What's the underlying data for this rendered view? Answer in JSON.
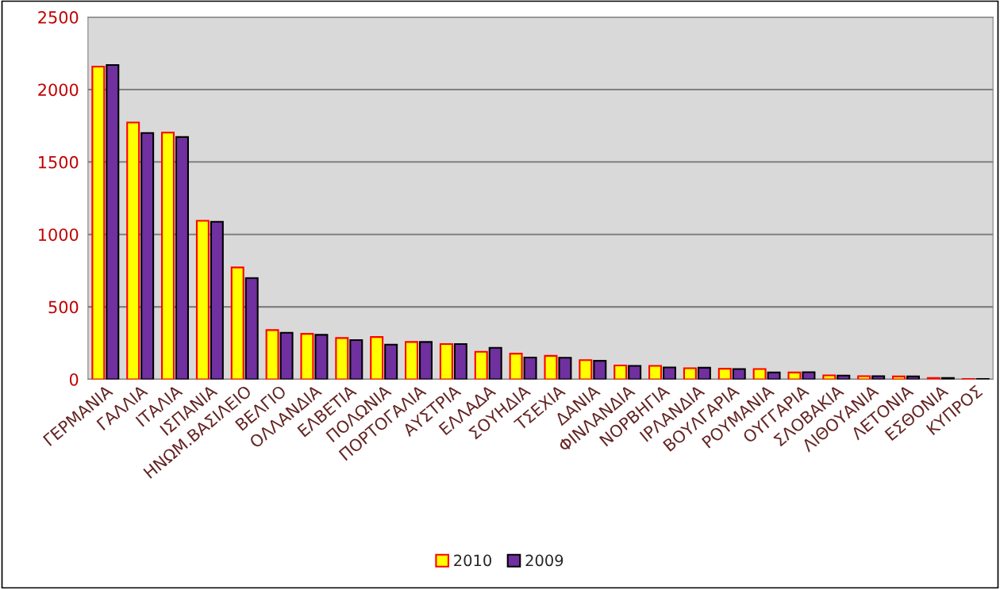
{
  "chart_data": {
    "type": "bar",
    "categories": [
      "ΓΕΡΜΑΝΙΑ",
      "ΓΑΛΛΙΑ",
      "ΙΤΑΛΙΑ",
      "ΙΣΠΑΝΙΑ",
      "ΗΝΩΜ.ΒΑΣΙΛΕΙΟ",
      "ΒΕΛΓΙΟ",
      "ΟΛΛΑΝΔΙΑ",
      "ΕΛΒΕΤΙΑ",
      "ΠΟΛΩΝΙΑ",
      "ΠΟΡΤΟΓΑΛΙΑ",
      "ΑΥΣΤΡΙΑ",
      "ΕΛΛΑΔΑ",
      "ΣΟΥΗΔΙΑ",
      "ΤΣΕΧΙΑ",
      "ΔΑΝΙΑ",
      "ΦΙΝΛΑΝΔΙΑ",
      "ΝΟΡΒΗΓΙΑ",
      "ΙΡΛΑΝΔΙΑ",
      "ΒΟΥΛΓΑΡΙΑ",
      "ΡΟΥΜΑΝΙΑ",
      "ΟΥΓΓΑΡΙΑ",
      "ΣΛΟΒΑΚΙΑ",
      "ΛΙΘΟΥΑΝΙΑ",
      "ΛΕΤΟΝΙΑ",
      "ΕΣΘΟΝΙΑ",
      "ΚΥΠΡΟΣ"
    ],
    "series": [
      {
        "name": "2010",
        "color": "#ffff00",
        "values": [
          2158,
          1773,
          1703,
          1094,
          772,
          340,
          314,
          285,
          292,
          258,
          243,
          190,
          177,
          162,
          133,
          96,
          93,
          77,
          73,
          71,
          47,
          27,
          22,
          20,
          9,
          2
        ]
      },
      {
        "name": "2009",
        "color": "#7030a0",
        "values": [
          2169,
          1700,
          1672,
          1087,
          699,
          321,
          307,
          271,
          239,
          258,
          243,
          217,
          150,
          149,
          128,
          93,
          82,
          80,
          71,
          47,
          49,
          26,
          22,
          20,
          9,
          2
        ]
      }
    ],
    "ylim": [
      0,
      2500
    ],
    "yticks": [
      0,
      500,
      1000,
      1500,
      2000,
      2500
    ],
    "grid": "y",
    "legend": "bottom"
  }
}
